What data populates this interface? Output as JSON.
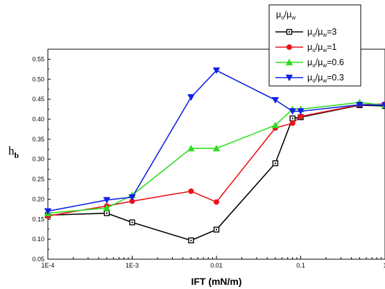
{
  "chart_data": {
    "type": "line",
    "xscale": "log",
    "xlim": [
      0.0001,
      1
    ],
    "ylim": [
      0.05,
      0.575
    ],
    "xlabel": "IFT (mN/m)",
    "ylabel_main": "h",
    "ylabel_sub": "b",
    "xticks": [
      {
        "value": 0.0001,
        "label": "1E-4"
      },
      {
        "value": 0.001,
        "label": "1E-3"
      },
      {
        "value": 0.01,
        "label": "0.01"
      },
      {
        "value": 0.1,
        "label": "0.1"
      },
      {
        "value": 1,
        "label": "1"
      }
    ],
    "yticks": [
      {
        "value": 0.05,
        "label": "0.05"
      },
      {
        "value": 0.1,
        "label": "0.10"
      },
      {
        "value": 0.15,
        "label": "0.15"
      },
      {
        "value": 0.2,
        "label": "0.20"
      },
      {
        "value": 0.25,
        "label": "0.25"
      },
      {
        "value": 0.3,
        "label": "0.30"
      },
      {
        "value": 0.35,
        "label": "0.35"
      },
      {
        "value": 0.4,
        "label": "0.40"
      },
      {
        "value": 0.45,
        "label": "0.45"
      },
      {
        "value": 0.5,
        "label": "0.50"
      },
      {
        "value": 0.55,
        "label": "0.55"
      }
    ],
    "legend": {
      "title_main": "μ",
      "title_sub1": "o",
      "title_mid": "/μ",
      "title_sub2": "w",
      "position": "top-right"
    },
    "series": [
      {
        "legend_value": "=3",
        "color": "#000000",
        "marker": "square-open",
        "x": [
          0.0001,
          0.0005,
          0.001,
          0.005,
          0.01,
          0.05,
          0.08,
          0.1,
          0.5,
          1
        ],
        "y": [
          0.16,
          0.165,
          0.142,
          0.097,
          0.124,
          0.29,
          0.402,
          0.405,
          0.435,
          0.433
        ]
      },
      {
        "legend_value": "=1",
        "color": "#e8141a",
        "marker": "circle",
        "x": [
          0.0001,
          0.0005,
          0.001,
          0.005,
          0.01,
          0.05,
          0.08,
          0.1,
          0.5,
          1
        ],
        "y": [
          0.158,
          0.183,
          0.195,
          0.22,
          0.193,
          0.378,
          0.39,
          0.407,
          0.436,
          0.438
        ]
      },
      {
        "legend_value": "=0.6",
        "color": "#2fdc1f",
        "marker": "triangle-up",
        "x": [
          0.0001,
          0.0005,
          0.001,
          0.005,
          0.01,
          0.05,
          0.08,
          0.1,
          0.5,
          1
        ],
        "y": [
          0.165,
          0.178,
          0.21,
          0.327,
          0.327,
          0.385,
          0.425,
          0.425,
          0.442,
          0.435
        ]
      },
      {
        "legend_value": "=0.3",
        "color": "#1020e8",
        "marker": "triangle-down",
        "x": [
          0.0001,
          0.0005,
          0.001,
          0.005,
          0.01,
          0.05,
          0.08,
          0.1,
          0.5,
          1
        ],
        "y": [
          0.17,
          0.198,
          0.205,
          0.455,
          0.522,
          0.448,
          0.42,
          0.42,
          0.436,
          0.435
        ]
      }
    ]
  }
}
